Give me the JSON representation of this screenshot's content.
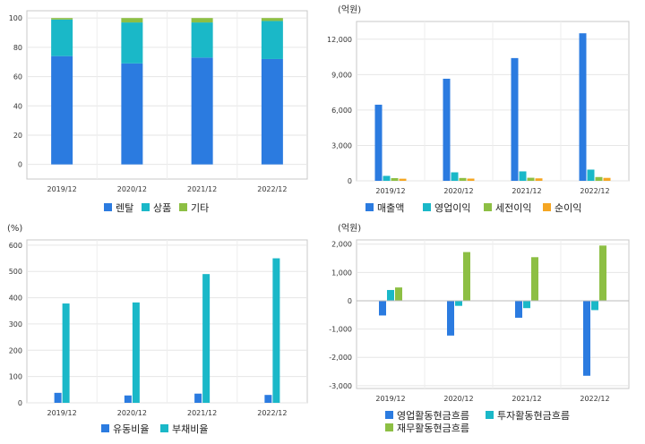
{
  "colors": {
    "blue": "#2b7be0",
    "cyan": "#1ab8c8",
    "green": "#8dbf44",
    "orange": "#f5a623"
  },
  "chart_data": [
    {
      "type": "bar",
      "stacked": true,
      "categories": [
        "2019/12",
        "2020/12",
        "2021/12",
        "2022/12"
      ],
      "series": [
        {
          "name": "렌탈",
          "color": "blue",
          "values": [
            74,
            69,
            73,
            72
          ]
        },
        {
          "name": "상품",
          "color": "cyan",
          "values": [
            25,
            28,
            24,
            26
          ]
        },
        {
          "name": "기타",
          "color": "green",
          "values": [
            1,
            3,
            3,
            2
          ]
        }
      ],
      "yticks": [
        "0",
        "20",
        "40",
        "60",
        "80",
        "100"
      ],
      "ylim": [
        -10,
        105
      ],
      "unit": "",
      "grid": true,
      "legend_position": "bottom"
    },
    {
      "type": "bar",
      "categories": [
        "2019/12",
        "2020/12",
        "2021/12",
        "2022/12"
      ],
      "series": [
        {
          "name": "매출액",
          "color": "blue",
          "values": [
            6450,
            8650,
            10400,
            12500
          ]
        },
        {
          "name": "영업이익",
          "color": "cyan",
          "values": [
            420,
            720,
            800,
            950
          ]
        },
        {
          "name": "세전이익",
          "color": "green",
          "values": [
            230,
            240,
            260,
            320
          ]
        },
        {
          "name": "순이익",
          "color": "orange",
          "values": [
            180,
            190,
            210,
            250
          ]
        }
      ],
      "yticks": [
        "0",
        "3,000",
        "6,000",
        "9,000",
        "12,000"
      ],
      "ylim": [
        0,
        13500
      ],
      "unit": "(억원)",
      "grid": true,
      "legend_position": "bottom"
    },
    {
      "type": "bar",
      "categories": [
        "2019/12",
        "2020/12",
        "2021/12",
        "2022/12"
      ],
      "series": [
        {
          "name": "유동비율",
          "color": "blue",
          "values": [
            38,
            28,
            35,
            30
          ]
        },
        {
          "name": "부채비율",
          "color": "cyan",
          "values": [
            378,
            382,
            490,
            550
          ]
        }
      ],
      "yticks": [
        "0",
        "100",
        "200",
        "300",
        "400",
        "500",
        "600"
      ],
      "ylim": [
        0,
        620
      ],
      "unit": "(%)",
      "grid": true,
      "legend_position": "bottom"
    },
    {
      "type": "bar",
      "categories": [
        "2019/12",
        "2020/12",
        "2021/12",
        "2022/12"
      ],
      "series": [
        {
          "name": "영업활동현금흐름",
          "color": "blue",
          "values": [
            -520,
            -1230,
            -600,
            -2650
          ]
        },
        {
          "name": "투자활동현금흐름",
          "color": "cyan",
          "values": [
            380,
            -180,
            -260,
            -330
          ]
        },
        {
          "name": "재무활동현금흐름",
          "color": "green",
          "values": [
            470,
            1720,
            1540,
            1950
          ]
        }
      ],
      "yticks": [
        "-3,000",
        "-2,000",
        "-1,000",
        "0",
        "1,000",
        "2,000"
      ],
      "ylim": [
        -3100,
        2150
      ],
      "unit": "(억원)",
      "grid": true,
      "legend_position": "bottom"
    }
  ]
}
